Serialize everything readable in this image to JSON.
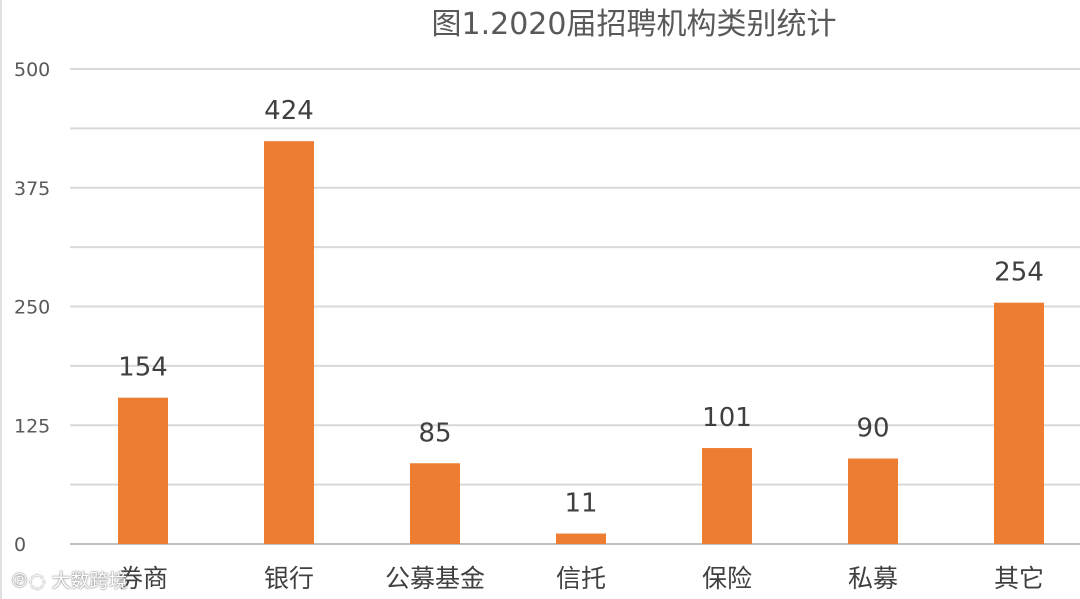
{
  "chart_data": {
    "type": "bar",
    "title": "图1.2020届招聘机构类别统计",
    "categories": [
      "券商",
      "银行",
      "公募基金",
      "信托",
      "保险",
      "私募",
      "其它"
    ],
    "values": [
      154,
      424,
      85,
      11,
      101,
      90,
      254
    ],
    "ylim": [
      0,
      500
    ],
    "yticks": [
      0,
      125,
      250,
      375,
      500
    ],
    "grid": true,
    "legend": "none",
    "bar_color": "#ED7D31",
    "xlabel": "",
    "ylabel": ""
  },
  "watermark": {
    "text": "大数跨境"
  }
}
